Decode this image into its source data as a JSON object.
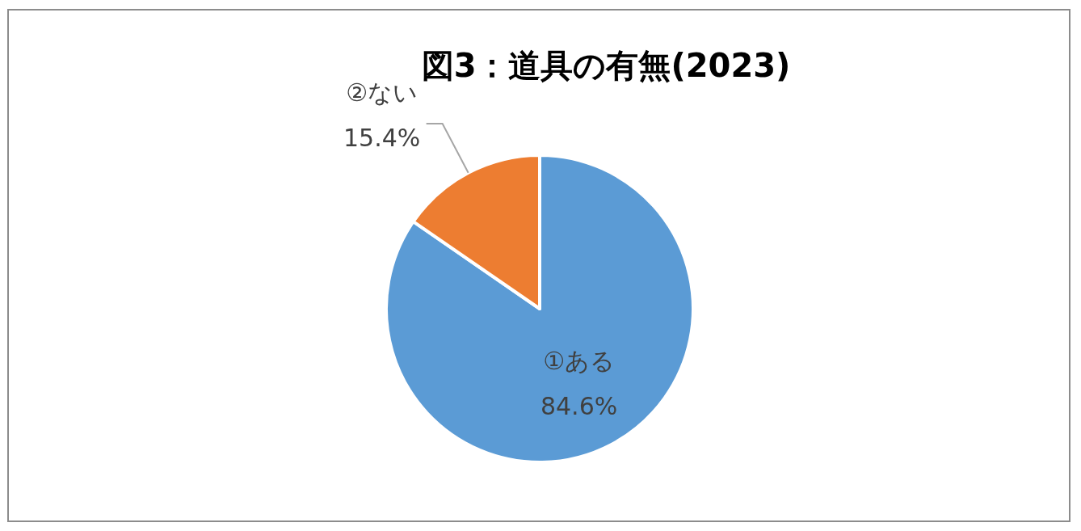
{
  "chart_data": {
    "type": "pie",
    "title": "図3：道具の有無(2023)",
    "categories": [
      "①ある",
      "②ない"
    ],
    "values": [
      84.6,
      15.4
    ],
    "colors": [
      "#5b9bd5",
      "#ed7d31"
    ],
    "value_labels": [
      "84.6%",
      "15.4%"
    ]
  }
}
